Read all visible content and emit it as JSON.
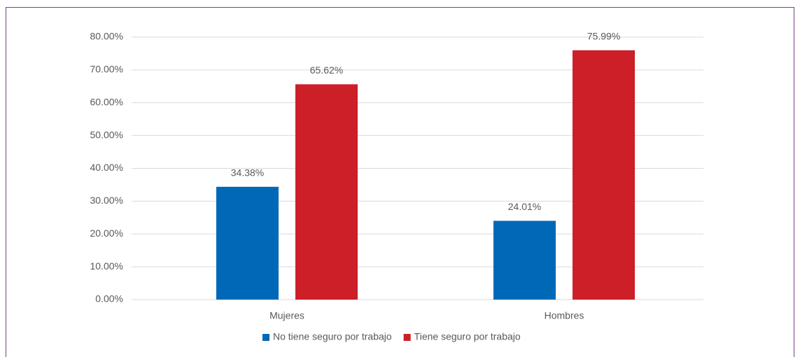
{
  "chart_data": {
    "type": "bar",
    "categories": [
      "Mujeres",
      "Hombres"
    ],
    "series": [
      {
        "name": "No tiene seguro por trabajo",
        "color": "#0069b7",
        "values": [
          34.38,
          24.01
        ],
        "value_labels": [
          "34.38%",
          "24.01%"
        ]
      },
      {
        "name": "Tiene seguro por trabajo",
        "color": "#cc1f28",
        "values": [
          65.62,
          75.99
        ],
        "value_labels": [
          "65.62%",
          "75.99%"
        ]
      }
    ],
    "ylim": [
      0,
      80
    ],
    "yticks": [
      {
        "value": 0,
        "label": "0.00%"
      },
      {
        "value": 10,
        "label": "10.00%"
      },
      {
        "value": 20,
        "label": "20.00%"
      },
      {
        "value": 30,
        "label": "30.00%"
      },
      {
        "value": 40,
        "label": "40.00%"
      },
      {
        "value": 50,
        "label": "50.00%"
      },
      {
        "value": 60,
        "label": "60.00%"
      },
      {
        "value": 70,
        "label": "70.00%"
      },
      {
        "value": 80,
        "label": "80.00%"
      }
    ],
    "grid": true,
    "legend": "bottom"
  }
}
